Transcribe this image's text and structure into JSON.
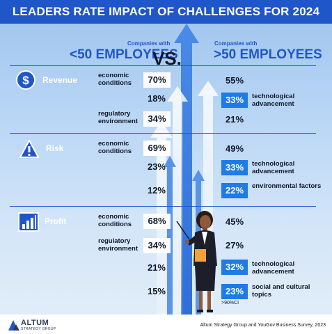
{
  "title": "LEADERS RATE IMPACT OF CHALLENGES FOR 2024",
  "header": {
    "left_sub": "Companies with",
    "left_main": "<50 EMPLOYEES",
    "vs": "VS.",
    "right_sub": "Companies with",
    "right_main": ">50 EMPLOYEES"
  },
  "colors": {
    "accent": "#1f56c9",
    "box_blue": "#1f7be6",
    "box_white": "#ffffff"
  },
  "sections": {
    "revenue": {
      "label": "Revenue",
      "icon": "dollar-icon",
      "left": [
        {
          "label": "economic conditions",
          "value": "70%"
        },
        {
          "label": "",
          "value": "18%"
        },
        {
          "label": "regulatory environment",
          "value": "34%"
        }
      ],
      "right": [
        {
          "value": "55%",
          "label": ""
        },
        {
          "value": "33%",
          "label": "technological advancement"
        },
        {
          "value": "21%",
          "label": ""
        }
      ]
    },
    "risk": {
      "label": "Risk",
      "icon": "warning-icon",
      "left": [
        {
          "label": "economic conditions",
          "value": "69%"
        },
        {
          "label": "",
          "value": "23%"
        },
        {
          "label": "",
          "value": "12%"
        }
      ],
      "right": [
        {
          "value": "49%",
          "label": ""
        },
        {
          "value": "33%",
          "label": "technological advancement"
        },
        {
          "value": "22%",
          "label": "environmental factors"
        }
      ]
    },
    "profit": {
      "label": "Profit",
      "icon": "bar-chart-icon",
      "left": [
        {
          "label": "economic conditions",
          "value": "68%"
        },
        {
          "label": "regulatory environment",
          "value": "34%"
        },
        {
          "label": "",
          "value": "21%"
        },
        {
          "label": "",
          "value": "15%"
        }
      ],
      "right": [
        {
          "value": "45%",
          "label": ""
        },
        {
          "value": "27%",
          "label": ""
        },
        {
          "value": "32%",
          "label": "technological advancement"
        },
        {
          "value": "23%",
          "label": "social and cultural topics"
        }
      ]
    }
  },
  "note": ">90%CI",
  "footer": {
    "logo_name": "ALTUM",
    "logo_sub": "STRATEGY GROUP",
    "source": "Altum Strategy Group and YouGov Business Survey, 2023"
  }
}
